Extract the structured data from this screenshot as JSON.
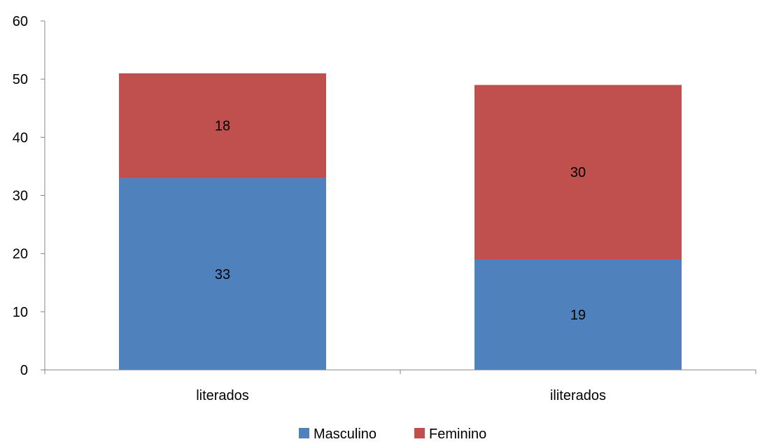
{
  "chart_data": {
    "type": "bar",
    "stacked": true,
    "categories": [
      "literados",
      "iliterados"
    ],
    "series": [
      {
        "name": "Masculino",
        "values": [
          33,
          19
        ],
        "color": "#4F81BD"
      },
      {
        "name": "Feminino",
        "values": [
          18,
          30
        ],
        "color": "#C0504D"
      }
    ],
    "ylim": [
      0,
      60
    ],
    "yticks": [
      0,
      10,
      20,
      30,
      40,
      50,
      60
    ],
    "grid": false,
    "legend_position": "bottom",
    "data_labels": true,
    "title": "",
    "xlabel": "",
    "ylabel": ""
  }
}
